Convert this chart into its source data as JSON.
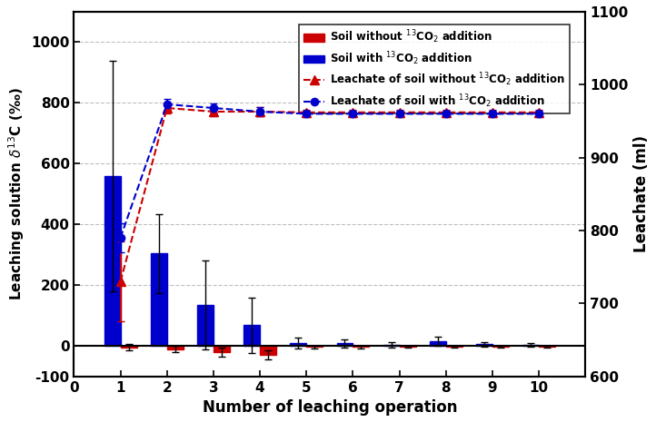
{
  "x_positions": [
    1,
    2,
    3,
    4,
    5,
    6,
    7,
    8,
    9,
    10
  ],
  "bar_blue_values": [
    560,
    305,
    135,
    68,
    10,
    8,
    3,
    15,
    5,
    3
  ],
  "bar_blue_errors_pos": [
    380,
    130,
    145,
    90,
    18,
    12,
    8,
    15,
    8,
    5
  ],
  "bar_blue_errors_neg": [
    380,
    130,
    145,
    90,
    18,
    12,
    8,
    15,
    8,
    5
  ],
  "bar_red_values": [
    -5,
    -10,
    -20,
    -30,
    -3,
    -3,
    -2,
    -2,
    -2,
    -2
  ],
  "bar_red_errors": [
    10,
    10,
    15,
    15,
    4,
    4,
    3,
    3,
    3,
    3
  ],
  "line_red_values": [
    730,
    968,
    963,
    963,
    962,
    962,
    962,
    962,
    962,
    962
  ],
  "line_red_errors": [
    55,
    8,
    6,
    6,
    4,
    4,
    4,
    4,
    4,
    4
  ],
  "line_blue_values": [
    790,
    973,
    968,
    963,
    960,
    960,
    960,
    960,
    960,
    960
  ],
  "line_blue_errors": [
    20,
    8,
    6,
    6,
    4,
    4,
    4,
    4,
    4,
    4
  ],
  "bar_width": 0.35,
  "xlim": [
    0,
    11
  ],
  "ylim_left": [
    -100,
    1100
  ],
  "ylim_right": [
    600,
    1100
  ],
  "yticks_left": [
    -100,
    0,
    200,
    400,
    600,
    800,
    1000
  ],
  "yticks_right": [
    600,
    700,
    800,
    900,
    1000,
    1100
  ],
  "xticks": [
    0,
    1,
    2,
    3,
    4,
    5,
    6,
    7,
    8,
    9,
    10
  ],
  "xlabel": "Number of leaching operation",
  "ylabel_left": "Leaching solution $\\delta^{13}$C (‰)",
  "ylabel_right": "Leachate (ml)",
  "color_blue": "#0000CD",
  "color_red": "#CC0000",
  "legend_labels": [
    "Soil without $^{13}$CO$_2$ addition",
    "Soil with $^{13}$CO$_2$ addition",
    "Leachate of soil without $^{13}$CO$_2$ addition",
    "Leachate of soil with $^{13}$CO$_2$ addition"
  ],
  "background_color": "#ffffff"
}
